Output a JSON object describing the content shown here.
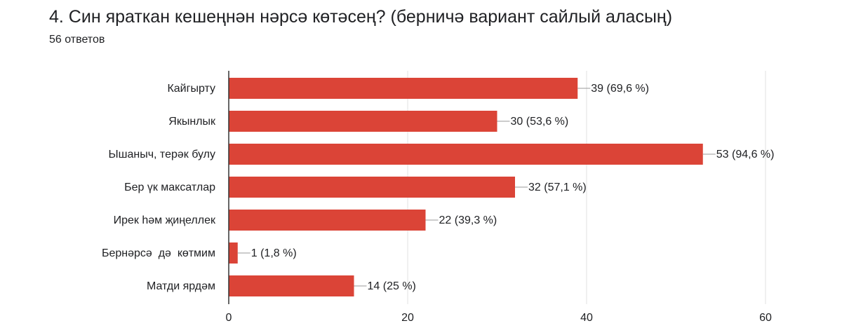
{
  "question": {
    "title": "4. Син яраткан кешеңнән нәрсә көтәсең? (берничә вариант сайлый аласың)",
    "response_count": "56 ответов"
  },
  "colors": {
    "bar": "#db4437",
    "grid": "#e0e0e0",
    "axis": "#333333",
    "text": "#202124",
    "leader": "#999999"
  },
  "chart_data": {
    "type": "bar",
    "orientation": "horizontal",
    "categories": [
      "Кайгырту",
      "Якынлык",
      "Ышаныч, терәк булу",
      "Бер үк максатлар",
      "Ирек һәм җиңеллек",
      "Бернәрсә  дә  көтмим",
      "Матди ярдәм"
    ],
    "values": [
      39,
      30,
      53,
      32,
      22,
      1,
      14
    ],
    "data_labels": [
      "39 (69,6 %)",
      "30 (53,6 %)",
      "53 (94,6 %)",
      "32 (57,1 %)",
      "22 (39,3 %)",
      "1 (1,8 %)",
      "14 (25 %)"
    ],
    "xlim": [
      0,
      60
    ],
    "xticks": [
      0,
      20,
      40,
      60
    ],
    "xtick_labels": [
      "0",
      "20",
      "40",
      "60"
    ],
    "grid": true,
    "title": "",
    "xlabel": "",
    "ylabel": ""
  }
}
